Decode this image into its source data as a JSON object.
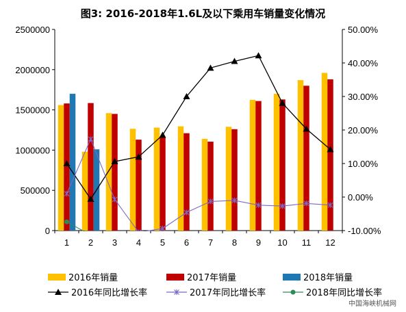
{
  "chart_data": {
    "type": "bar",
    "title": "图3: 2016-2018年1.6L及以下乘用车销量变化情况",
    "categories": [
      "1",
      "2",
      "3",
      "4",
      "5",
      "6",
      "7",
      "8",
      "9",
      "10",
      "11",
      "12"
    ],
    "series": [
      {
        "name": "2016年销量",
        "kind": "bar",
        "axis": "left",
        "color": "#FFC000",
        "values": [
          1560000,
          980000,
          1460000,
          1265000,
          1280000,
          1295000,
          1140000,
          1290000,
          1625000,
          1700000,
          1870000,
          1960000
        ]
      },
      {
        "name": "2017年销量",
        "kind": "bar",
        "axis": "left",
        "color": "#C00000",
        "values": [
          1580000,
          1585000,
          1450000,
          1130000,
          1160000,
          1210000,
          1105000,
          1260000,
          1610000,
          1630000,
          1800000,
          1880000
        ]
      },
      {
        "name": "2018年销量",
        "kind": "bar",
        "axis": "left",
        "color": "#1F77B4",
        "values": [
          1700000,
          1010000,
          null,
          null,
          null,
          null,
          null,
          null,
          null,
          null,
          null,
          null
        ]
      },
      {
        "name": "2016年同比增长率",
        "kind": "line",
        "axis": "right",
        "color": "#000000",
        "marker": "triangle",
        "values": [
          0.1,
          -0.006,
          0.106,
          0.12,
          0.185,
          0.3,
          0.385,
          0.405,
          0.422,
          0.28,
          0.203,
          0.142
        ]
      },
      {
        "name": "2017年同比增长率",
        "kind": "line",
        "axis": "right",
        "color": "#7B68C8",
        "marker": "star",
        "values": [
          0.01,
          0.173,
          -0.007,
          -0.105,
          -0.094,
          -0.046,
          -0.013,
          -0.01,
          -0.024,
          -0.027,
          -0.019,
          -0.024
        ]
      },
      {
        "name": "2018年同比增长率",
        "kind": "line",
        "axis": "right",
        "color": "#2E8B57",
        "marker": "circle",
        "values": [
          -0.074,
          -0.113,
          null,
          null,
          null,
          null,
          null,
          null,
          null,
          null,
          null,
          null
        ]
      }
    ],
    "left_axis": {
      "min": 0,
      "max": 2500000,
      "ticks": [
        0,
        500000,
        1000000,
        1500000,
        2000000,
        2500000
      ],
      "tick_labels": [
        "0",
        "500000",
        "1000000",
        "1500000",
        "2000000",
        "2500000"
      ]
    },
    "right_axis": {
      "min": -0.1,
      "max": 0.5,
      "ticks": [
        -0.1,
        0.0,
        0.1,
        0.2,
        0.3,
        0.4,
        0.5
      ],
      "tick_labels": [
        "-10.00%",
        "0.00%",
        "10.00%",
        "20.00%",
        "30.00%",
        "40.00%",
        "50.00%"
      ]
    },
    "legend_position": "bottom",
    "grid": false
  },
  "watermark": "中国海峡机械网"
}
